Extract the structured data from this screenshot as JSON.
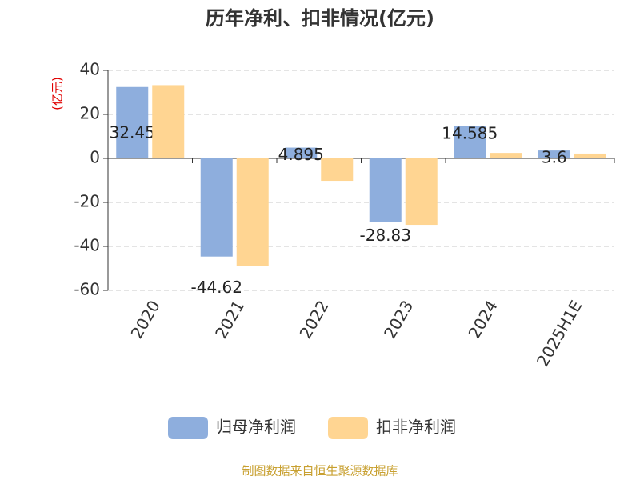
{
  "chart_data": {
    "type": "bar",
    "title": "历年净利、扣非情况(亿元)",
    "y_label": "(亿元)",
    "categories": [
      "2020",
      "2021",
      "2022",
      "2023",
      "2024",
      "2025H1E"
    ],
    "series": [
      {
        "name": "归母净利润",
        "color": "#8eaedd",
        "values": [
          32.45,
          -44.62,
          4.895,
          -28.83,
          14.585,
          3.6
        ]
      },
      {
        "name": "扣非净利润",
        "color": "#ffd592",
        "values": [
          33.3,
          -49,
          -10.2,
          -30.2,
          2.5,
          2.2
        ]
      }
    ],
    "ylim": [
      -60,
      40
    ],
    "yticks": [
      -60,
      -40,
      -20,
      0,
      20,
      40
    ],
    "grid": true,
    "legend": "bottom",
    "source": "制图数据来自恒生聚源数据库"
  }
}
